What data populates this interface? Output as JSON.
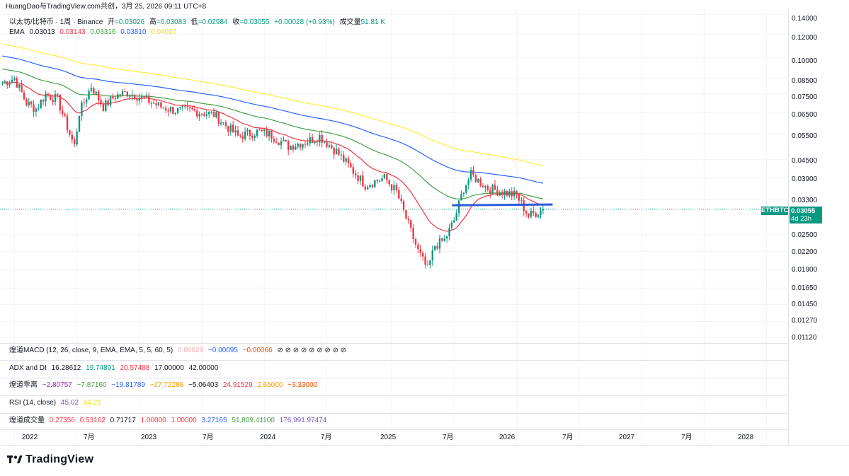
{
  "header": {
    "attribution": "HuangDao与TradingView.com共创，3月 25, 2026 09:11 UTC+8"
  },
  "legend": {
    "symbol": "以太坊/比特币 · 1周 · Binance",
    "open_label": "开",
    "open": "=0.03026",
    "high_label": "高",
    "high": "=0.03083",
    "low_label": "低",
    "low": "=0.02984",
    "close_label": "收",
    "close": "=0.03055",
    "change": "+0.00028 (+0.93%)",
    "volume_label": "成交量",
    "volume": "51.81 K",
    "ema_label": "EMA",
    "ema": [
      "0.03013",
      "0.03143",
      "0.03316",
      "0.03810",
      "0.04027"
    ]
  },
  "colors": {
    "up": "#089981",
    "down": "#f23645",
    "ema1": "#131722",
    "ema2": "#f23645",
    "ema3": "#43a047",
    "ema4": "#2962ff",
    "ema5": "#ffeb3b",
    "trendline": "#2c5ad8"
  },
  "indicators": {
    "macd": {
      "label": "煌道MACD (12, 26, close, 9, EMA, EMA, 5, 5, 60, 5)",
      "v1": "0.00029",
      "v2": "−0.00095",
      "v3": "−0.00066",
      "circles": "⊘ ⊘ ⊘ ⊘ ⊘ ⊘ ⊘ ⊘ ⊘"
    },
    "adx": {
      "label": "ADX and DI",
      "v1": "16.28612",
      "v2": "19.74891",
      "v3": "20.57488",
      "v4": "17.00000",
      "v5": "42.00000"
    },
    "deviation": {
      "label": "煌道乖离",
      "v1": "−2.80757",
      "v2": "−7.87160",
      "v3": "−19.81789",
      "v4": "−27.72286",
      "v5": "−5.06403",
      "v6": "24.91529",
      "v7": "2.65000",
      "v8": "−3.33000"
    },
    "rsi": {
      "label": "RSI (14, close)",
      "v1": "45.02",
      "v2": "44.21"
    },
    "volume": {
      "label": "煌道成交量",
      "v1": "0.27356",
      "v2": "0.53162",
      "v3": "0.71717",
      "v4": "1.00000",
      "v5": "1.00000",
      "v6": "3.27165",
      "v7": "51,809.41100",
      "v8": "176,991.97474"
    }
  },
  "price_axis": [
    "0.14000",
    "0.12000",
    "0.10000",
    "0.08500",
    "0.07500",
    "0.06500",
    "0.05500",
    "0.04500",
    "0.03900",
    "0.03300",
    "0.02500",
    "0.02200",
    "0.01900",
    "0.01650",
    "0.01450",
    "0.01270",
    "0.01120"
  ],
  "price_tag": {
    "symbol": "ETHBTC",
    "price": "0.03055",
    "countdown": "4d 23h"
  },
  "time_axis": [
    "2022",
    "7月",
    "2023",
    "7月",
    "2024",
    "7月",
    "2025",
    "7月",
    "2026",
    "7月",
    "2027",
    "7月",
    "2028"
  ],
  "logo_text": "TradingView",
  "chart_data": {
    "type": "candlestick",
    "series_name": "以太坊/比特币 · 1周 · Binance",
    "yscale": "log",
    "ylim": [
      0.0108,
      0.145
    ],
    "xlim": [
      "2021-11-22",
      "2028-03-06"
    ],
    "candles_close": [
      [
        "2021-11-29",
        0.082
      ],
      [
        "2022-01-03",
        0.085
      ],
      [
        "2022-02-07",
        0.07
      ],
      [
        "2022-03-07",
        0.067
      ],
      [
        "2022-04-04",
        0.075
      ],
      [
        "2022-05-09",
        0.072
      ],
      [
        "2022-06-13",
        0.055
      ],
      [
        "2022-06-27",
        0.05
      ],
      [
        "2022-07-11",
        0.065
      ],
      [
        "2022-08-15",
        0.08
      ],
      [
        "2022-09-19",
        0.068
      ],
      [
        "2022-10-24",
        0.074
      ],
      [
        "2022-11-28",
        0.076
      ],
      [
        "2023-01-09",
        0.073
      ],
      [
        "2023-03-06",
        0.068
      ],
      [
        "2023-04-17",
        0.066
      ],
      [
        "2023-06-05",
        0.066
      ],
      [
        "2023-08-07",
        0.064
      ],
      [
        "2023-10-16",
        0.054
      ],
      [
        "2023-12-11",
        0.056
      ],
      [
        "2024-01-15",
        0.055
      ],
      [
        "2024-03-11",
        0.05
      ],
      [
        "2024-05-06",
        0.052
      ],
      [
        "2024-06-10",
        0.054
      ],
      [
        "2024-07-29",
        0.048
      ],
      [
        "2024-09-09",
        0.042
      ],
      [
        "2024-10-21",
        0.037
      ],
      [
        "2024-12-16",
        0.039
      ],
      [
        "2025-01-20",
        0.035
      ],
      [
        "2025-02-24",
        0.027
      ],
      [
        "2025-03-24",
        0.022
      ],
      [
        "2025-04-21",
        0.019
      ],
      [
        "2025-05-12",
        0.023
      ],
      [
        "2025-06-09",
        0.024
      ],
      [
        "2025-07-07",
        0.028
      ],
      [
        "2025-08-04",
        0.036
      ],
      [
        "2025-08-25",
        0.04
      ],
      [
        "2025-10-13",
        0.036
      ],
      [
        "2025-11-24",
        0.035
      ],
      [
        "2026-01-05",
        0.034
      ],
      [
        "2026-02-09",
        0.029
      ],
      [
        "2026-03-23",
        0.03055
      ]
    ],
    "trendline": {
      "from": [
        "2025-07-01",
        0.0315
      ],
      "to": [
        "2026-04-20",
        0.0317
      ]
    }
  }
}
